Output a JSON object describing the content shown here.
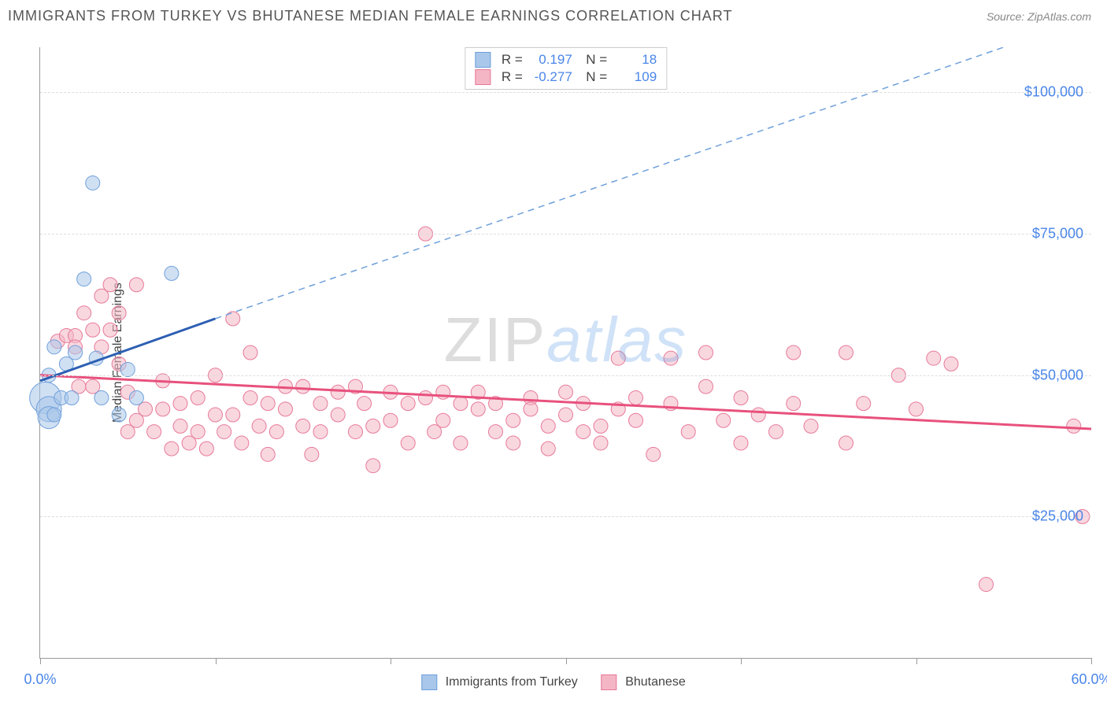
{
  "title": "IMMIGRANTS FROM TURKEY VS BHUTANESE MEDIAN FEMALE EARNINGS CORRELATION CHART",
  "source": "Source: ZipAtlas.com",
  "ylabel": "Median Female Earnings",
  "watermark": {
    "part1": "ZIP",
    "part2": "atlas"
  },
  "chart": {
    "type": "scatter",
    "background_color": "#ffffff",
    "grid_color": "#dddddd",
    "axis_color": "#999999",
    "label_color": "#4a86e8",
    "xlim": [
      0,
      60
    ],
    "ylim": [
      0,
      108000
    ],
    "ytick_step": 25000,
    "yticks": [
      {
        "v": 25000,
        "label": "$25,000"
      },
      {
        "v": 50000,
        "label": "$50,000"
      },
      {
        "v": 75000,
        "label": "$75,000"
      },
      {
        "v": 100000,
        "label": "$100,000"
      }
    ],
    "xticks_minor": [
      0,
      10,
      20,
      30,
      40,
      50,
      60
    ],
    "xticks_labeled": [
      {
        "v": 0,
        "label": "0.0%"
      },
      {
        "v": 60,
        "label": "60.0%"
      }
    ],
    "series": [
      {
        "name": "Immigrants from Turkey",
        "fill": "#a9c7ea",
        "fill_opacity": 0.55,
        "stroke": "#6fa0db",
        "marker_r": 9,
        "stats": {
          "R": "0.197",
          "N": "18"
        },
        "trend": {
          "solid": {
            "x1": 0,
            "y1": 49000,
            "x2": 10,
            "y2": 60000,
            "color": "#2d5fb3",
            "width": 3
          },
          "dashed": {
            "x1": 10,
            "y1": 60000,
            "x2": 55,
            "y2": 108000,
            "color": "#6fa0db",
            "width": 1.5
          }
        },
        "points": [
          {
            "x": 0.3,
            "y": 46000,
            "r": 20
          },
          {
            "x": 0.5,
            "y": 44000,
            "r": 16
          },
          {
            "x": 0.5,
            "y": 42500,
            "r": 14
          },
          {
            "x": 0.5,
            "y": 50000,
            "r": 9
          },
          {
            "x": 0.8,
            "y": 55000,
            "r": 9
          },
          {
            "x": 0.8,
            "y": 43000,
            "r": 9
          },
          {
            "x": 1.2,
            "y": 46000,
            "r": 9
          },
          {
            "x": 1.5,
            "y": 52000,
            "r": 9
          },
          {
            "x": 1.8,
            "y": 46000,
            "r": 9
          },
          {
            "x": 2.0,
            "y": 54000,
            "r": 9
          },
          {
            "x": 2.5,
            "y": 67000,
            "r": 9
          },
          {
            "x": 3.0,
            "y": 84000,
            "r": 9
          },
          {
            "x": 3.2,
            "y": 53000,
            "r": 9
          },
          {
            "x": 3.5,
            "y": 46000,
            "r": 9
          },
          {
            "x": 4.5,
            "y": 43000,
            "r": 9
          },
          {
            "x": 5.0,
            "y": 51000,
            "r": 9
          },
          {
            "x": 5.5,
            "y": 46000,
            "r": 9
          },
          {
            "x": 7.5,
            "y": 68000,
            "r": 9
          }
        ]
      },
      {
        "name": "Bhutanese",
        "fill": "#f4b6c5",
        "fill_opacity": 0.55,
        "stroke": "#e77a99",
        "marker_r": 9,
        "stats": {
          "R": "-0.277",
          "N": "109"
        },
        "trend": {
          "solid": {
            "x1": 0,
            "y1": 50000,
            "x2": 60,
            "y2": 40500,
            "color": "#e8517d",
            "width": 3
          }
        },
        "points": [
          {
            "x": 1,
            "y": 56000
          },
          {
            "x": 1.5,
            "y": 57000
          },
          {
            "x": 2,
            "y": 57000
          },
          {
            "x": 2,
            "y": 55000
          },
          {
            "x": 2.2,
            "y": 48000
          },
          {
            "x": 2.5,
            "y": 61000
          },
          {
            "x": 3,
            "y": 58000
          },
          {
            "x": 3,
            "y": 48000
          },
          {
            "x": 3.5,
            "y": 64000
          },
          {
            "x": 3.5,
            "y": 55000
          },
          {
            "x": 4,
            "y": 58000
          },
          {
            "x": 4,
            "y": 66000
          },
          {
            "x": 4.5,
            "y": 61000
          },
          {
            "x": 4.5,
            "y": 52000
          },
          {
            "x": 5,
            "y": 47000
          },
          {
            "x": 5,
            "y": 40000
          },
          {
            "x": 5.5,
            "y": 66000
          },
          {
            "x": 5.5,
            "y": 42000
          },
          {
            "x": 6,
            "y": 44000
          },
          {
            "x": 6.5,
            "y": 40000
          },
          {
            "x": 7,
            "y": 49000
          },
          {
            "x": 7,
            "y": 44000
          },
          {
            "x": 7.5,
            "y": 37000
          },
          {
            "x": 8,
            "y": 41000
          },
          {
            "x": 8,
            "y": 45000
          },
          {
            "x": 8.5,
            "y": 38000
          },
          {
            "x": 9,
            "y": 40000
          },
          {
            "x": 9,
            "y": 46000
          },
          {
            "x": 9.5,
            "y": 37000
          },
          {
            "x": 10,
            "y": 50000
          },
          {
            "x": 10,
            "y": 43000
          },
          {
            "x": 10.5,
            "y": 40000
          },
          {
            "x": 11,
            "y": 43000
          },
          {
            "x": 11,
            "y": 60000
          },
          {
            "x": 11.5,
            "y": 38000
          },
          {
            "x": 12,
            "y": 46000
          },
          {
            "x": 12,
            "y": 54000
          },
          {
            "x": 12.5,
            "y": 41000
          },
          {
            "x": 13,
            "y": 45000
          },
          {
            "x": 13,
            "y": 36000
          },
          {
            "x": 13.5,
            "y": 40000
          },
          {
            "x": 14,
            "y": 48000
          },
          {
            "x": 14,
            "y": 44000
          },
          {
            "x": 15,
            "y": 41000
          },
          {
            "x": 15,
            "y": 48000
          },
          {
            "x": 15.5,
            "y": 36000
          },
          {
            "x": 16,
            "y": 45000
          },
          {
            "x": 16,
            "y": 40000
          },
          {
            "x": 17,
            "y": 47000
          },
          {
            "x": 17,
            "y": 43000
          },
          {
            "x": 18,
            "y": 48000
          },
          {
            "x": 18,
            "y": 40000
          },
          {
            "x": 18.5,
            "y": 45000
          },
          {
            "x": 19,
            "y": 41000
          },
          {
            "x": 19,
            "y": 34000
          },
          {
            "x": 20,
            "y": 47000
          },
          {
            "x": 20,
            "y": 42000
          },
          {
            "x": 21,
            "y": 45000
          },
          {
            "x": 21,
            "y": 38000
          },
          {
            "x": 22,
            "y": 46000
          },
          {
            "x": 22,
            "y": 75000
          },
          {
            "x": 22.5,
            "y": 40000
          },
          {
            "x": 23,
            "y": 47000
          },
          {
            "x": 23,
            "y": 42000
          },
          {
            "x": 24,
            "y": 45000
          },
          {
            "x": 24,
            "y": 38000
          },
          {
            "x": 25,
            "y": 44000
          },
          {
            "x": 25,
            "y": 47000
          },
          {
            "x": 26,
            "y": 40000
          },
          {
            "x": 26,
            "y": 45000
          },
          {
            "x": 27,
            "y": 42000
          },
          {
            "x": 27,
            "y": 38000
          },
          {
            "x": 28,
            "y": 46000
          },
          {
            "x": 28,
            "y": 44000
          },
          {
            "x": 29,
            "y": 37000
          },
          {
            "x": 29,
            "y": 41000
          },
          {
            "x": 30,
            "y": 47000
          },
          {
            "x": 30,
            "y": 43000
          },
          {
            "x": 31,
            "y": 40000
          },
          {
            "x": 31,
            "y": 45000
          },
          {
            "x": 32,
            "y": 41000
          },
          {
            "x": 32,
            "y": 38000
          },
          {
            "x": 33,
            "y": 44000
          },
          {
            "x": 33,
            "y": 53000
          },
          {
            "x": 34,
            "y": 42000
          },
          {
            "x": 34,
            "y": 46000
          },
          {
            "x": 35,
            "y": 36000
          },
          {
            "x": 36,
            "y": 45000
          },
          {
            "x": 36,
            "y": 53000
          },
          {
            "x": 37,
            "y": 40000
          },
          {
            "x": 38,
            "y": 48000
          },
          {
            "x": 38,
            "y": 54000
          },
          {
            "x": 39,
            "y": 42000
          },
          {
            "x": 40,
            "y": 46000
          },
          {
            "x": 40,
            "y": 38000
          },
          {
            "x": 41,
            "y": 43000
          },
          {
            "x": 42,
            "y": 40000
          },
          {
            "x": 43,
            "y": 45000
          },
          {
            "x": 43,
            "y": 54000
          },
          {
            "x": 44,
            "y": 41000
          },
          {
            "x": 46,
            "y": 38000
          },
          {
            "x": 46,
            "y": 54000
          },
          {
            "x": 47,
            "y": 45000
          },
          {
            "x": 49,
            "y": 50000
          },
          {
            "x": 50,
            "y": 44000
          },
          {
            "x": 51,
            "y": 53000
          },
          {
            "x": 52,
            "y": 52000
          },
          {
            "x": 54,
            "y": 13000
          },
          {
            "x": 59,
            "y": 41000
          },
          {
            "x": 59.5,
            "y": 25000
          }
        ]
      }
    ]
  },
  "legend": {
    "series1": "Immigrants from Turkey",
    "series2": "Bhutanese"
  }
}
